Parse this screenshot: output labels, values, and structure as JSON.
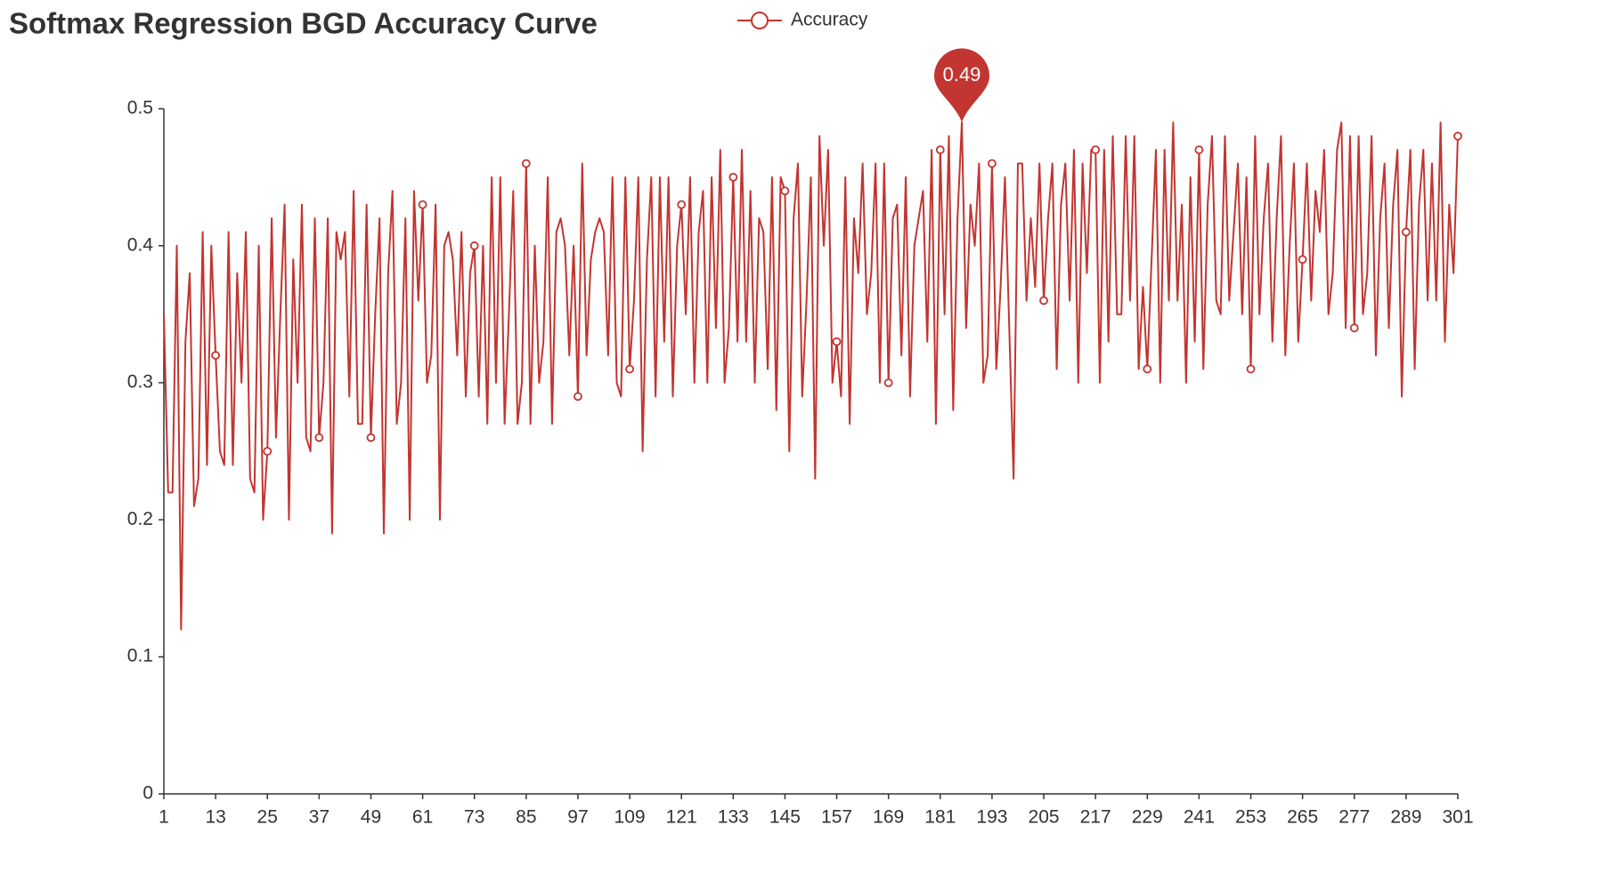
{
  "chart_data": {
    "type": "line",
    "title": "Softmax Regression BGD Accuracy Curve",
    "x": [
      1,
      2,
      3,
      4,
      5,
      6,
      7,
      8,
      9,
      10,
      11,
      12,
      13,
      14,
      15,
      16,
      17,
      18,
      19,
      20,
      21,
      22,
      23,
      24,
      25,
      26,
      27,
      28,
      29,
      30,
      31,
      32,
      33,
      34,
      35,
      36,
      37,
      38,
      39,
      40,
      41,
      42,
      43,
      44,
      45,
      46,
      47,
      48,
      49,
      50,
      51,
      52,
      53,
      54,
      55,
      56,
      57,
      58,
      59,
      60,
      61,
      62,
      63,
      64,
      65,
      66,
      67,
      68,
      69,
      70,
      71,
      72,
      73,
      74,
      75,
      76,
      77,
      78,
      79,
      80,
      81,
      82,
      83,
      84,
      85,
      86,
      87,
      88,
      89,
      90,
      91,
      92,
      93,
      94,
      95,
      96,
      97,
      98,
      99,
      100,
      101,
      102,
      103,
      104,
      105,
      106,
      107,
      108,
      109,
      110,
      111,
      112,
      113,
      114,
      115,
      116,
      117,
      118,
      119,
      120,
      121,
      122,
      123,
      124,
      125,
      126,
      127,
      128,
      129,
      130,
      131,
      132,
      133,
      134,
      135,
      136,
      137,
      138,
      139,
      140,
      141,
      142,
      143,
      144,
      145,
      146,
      147,
      148,
      149,
      150,
      151,
      152,
      153,
      154,
      155,
      156,
      157,
      158,
      159,
      160,
      161,
      162,
      163,
      164,
      165,
      166,
      167,
      168,
      169,
      170,
      171,
      172,
      173,
      174,
      175,
      176,
      177,
      178,
      179,
      180,
      181,
      182,
      183,
      184,
      185,
      186,
      187,
      188,
      189,
      190,
      191,
      192,
      193,
      194,
      195,
      196,
      197,
      198,
      199,
      200,
      201,
      202,
      203,
      204,
      205,
      206,
      207,
      208,
      209,
      210,
      211,
      212,
      213,
      214,
      215,
      216,
      217,
      218,
      219,
      220,
      221,
      222,
      223,
      224,
      225,
      226,
      227,
      228,
      229,
      230,
      231,
      232,
      233,
      234,
      235,
      236,
      237,
      238,
      239,
      240,
      241,
      242,
      243,
      244,
      245,
      246,
      247,
      248,
      249,
      250,
      251,
      252,
      253,
      254,
      255,
      256,
      257,
      258,
      259,
      260,
      261,
      262,
      263,
      264,
      265,
      266,
      267,
      268,
      269,
      270,
      271,
      272,
      273,
      274,
      275,
      276,
      277,
      278,
      279,
      280,
      281,
      282,
      283,
      284,
      285,
      286,
      287,
      288,
      289,
      290,
      291,
      292,
      293,
      294,
      295,
      296,
      297,
      298,
      299,
      300,
      301
    ],
    "series": [
      {
        "name": "Accuracy",
        "color": "#c23531",
        "values": [
          0.35,
          0.22,
          0.22,
          0.4,
          0.12,
          0.33,
          0.38,
          0.21,
          0.23,
          0.41,
          0.24,
          0.4,
          0.32,
          0.25,
          0.24,
          0.41,
          0.24,
          0.38,
          0.3,
          0.41,
          0.23,
          0.22,
          0.4,
          0.2,
          0.25,
          0.42,
          0.26,
          0.35,
          0.43,
          0.2,
          0.39,
          0.3,
          0.43,
          0.26,
          0.25,
          0.42,
          0.26,
          0.3,
          0.42,
          0.19,
          0.41,
          0.39,
          0.41,
          0.29,
          0.44,
          0.27,
          0.27,
          0.43,
          0.26,
          0.35,
          0.42,
          0.19,
          0.38,
          0.44,
          0.27,
          0.3,
          0.42,
          0.2,
          0.44,
          0.36,
          0.43,
          0.3,
          0.32,
          0.43,
          0.2,
          0.4,
          0.41,
          0.39,
          0.32,
          0.41,
          0.29,
          0.38,
          0.4,
          0.29,
          0.4,
          0.27,
          0.45,
          0.3,
          0.45,
          0.27,
          0.35,
          0.44,
          0.27,
          0.3,
          0.46,
          0.27,
          0.4,
          0.3,
          0.33,
          0.45,
          0.27,
          0.41,
          0.42,
          0.4,
          0.32,
          0.4,
          0.29,
          0.46,
          0.32,
          0.39,
          0.41,
          0.42,
          0.41,
          0.32,
          0.45,
          0.3,
          0.29,
          0.45,
          0.31,
          0.36,
          0.45,
          0.25,
          0.39,
          0.45,
          0.29,
          0.45,
          0.33,
          0.45,
          0.29,
          0.4,
          0.43,
          0.35,
          0.45,
          0.3,
          0.41,
          0.44,
          0.3,
          0.45,
          0.34,
          0.47,
          0.3,
          0.34,
          0.45,
          0.33,
          0.47,
          0.33,
          0.44,
          0.3,
          0.42,
          0.41,
          0.31,
          0.45,
          0.28,
          0.45,
          0.44,
          0.25,
          0.42,
          0.46,
          0.29,
          0.36,
          0.45,
          0.23,
          0.48,
          0.4,
          0.47,
          0.3,
          0.33,
          0.29,
          0.45,
          0.27,
          0.42,
          0.38,
          0.46,
          0.35,
          0.38,
          0.46,
          0.3,
          0.46,
          0.3,
          0.42,
          0.43,
          0.32,
          0.45,
          0.29,
          0.4,
          0.42,
          0.44,
          0.33,
          0.47,
          0.27,
          0.47,
          0.35,
          0.48,
          0.28,
          0.42,
          0.49,
          0.34,
          0.43,
          0.4,
          0.46,
          0.3,
          0.32,
          0.46,
          0.31,
          0.37,
          0.45,
          0.34,
          0.23,
          0.46,
          0.46,
          0.36,
          0.42,
          0.37,
          0.46,
          0.36,
          0.42,
          0.46,
          0.31,
          0.43,
          0.46,
          0.36,
          0.47,
          0.3,
          0.46,
          0.38,
          0.47,
          0.47,
          0.3,
          0.47,
          0.33,
          0.48,
          0.35,
          0.35,
          0.48,
          0.36,
          0.48,
          0.31,
          0.37,
          0.31,
          0.39,
          0.47,
          0.3,
          0.47,
          0.36,
          0.49,
          0.36,
          0.43,
          0.3,
          0.45,
          0.33,
          0.47,
          0.31,
          0.43,
          0.48,
          0.36,
          0.35,
          0.48,
          0.36,
          0.41,
          0.46,
          0.35,
          0.45,
          0.31,
          0.48,
          0.35,
          0.42,
          0.46,
          0.33,
          0.42,
          0.48,
          0.32,
          0.4,
          0.46,
          0.33,
          0.39,
          0.46,
          0.36,
          0.44,
          0.41,
          0.47,
          0.35,
          0.38,
          0.47,
          0.49,
          0.34,
          0.48,
          0.34,
          0.48,
          0.35,
          0.38,
          0.48,
          0.32,
          0.42,
          0.46,
          0.34,
          0.43,
          0.47,
          0.29,
          0.41,
          0.47,
          0.31,
          0.43,
          0.47,
          0.36,
          0.46,
          0.36,
          0.49,
          0.33,
          0.43,
          0.38,
          0.48
        ]
      }
    ],
    "max_point": {
      "x": 186,
      "value": 0.49
    },
    "xlim": [
      1,
      301
    ],
    "xticks": [
      1,
      13,
      25,
      37,
      49,
      61,
      73,
      85,
      97,
      109,
      121,
      133,
      145,
      157,
      169,
      181,
      193,
      205,
      217,
      229,
      241,
      253,
      265,
      277,
      289,
      301
    ],
    "ylim": [
      0,
      0.5
    ],
    "yticks": [
      0,
      0.1,
      0.2,
      0.3,
      0.4,
      0.5
    ]
  }
}
